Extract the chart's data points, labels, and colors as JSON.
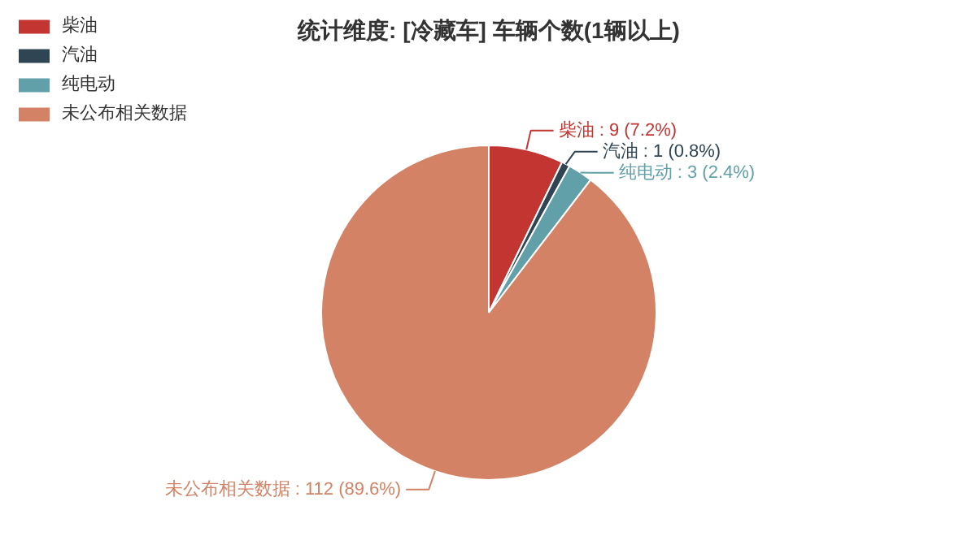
{
  "chart_data": {
    "type": "pie",
    "title": "统计维度: [冷藏车] 车辆个数(1辆以上)",
    "categories": [
      "柴油",
      "汽油",
      "纯电动",
      "未公布相关数据"
    ],
    "values": [
      9,
      1,
      3,
      112
    ],
    "colors": [
      "#c23531",
      "#2f4554",
      "#61a0a8",
      "#d48265"
    ],
    "value_labels": [
      "柴油 : 9 (7.2%)",
      "汽油 : 1 (0.8%)",
      "纯电动 : 3 (2.4%)",
      "未公布相关数据 : 112 (89.6%)"
    ],
    "legend": "top left"
  }
}
